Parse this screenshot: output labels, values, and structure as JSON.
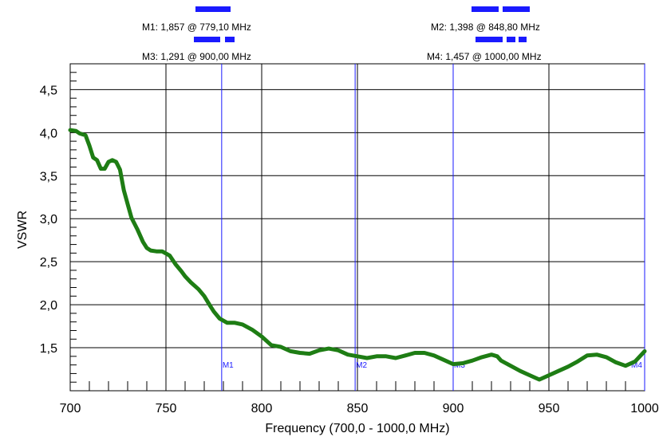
{
  "chart_data": {
    "type": "line",
    "xlabel": "Frequency (700,0 - 1000,0 MHz)",
    "ylabel": "VSWR",
    "xlim": [
      700,
      1000
    ],
    "ylim": [
      1.0,
      4.8
    ],
    "x_ticks": [
      700,
      750,
      800,
      850,
      900,
      950,
      1000
    ],
    "x_tick_labels": [
      "700",
      "750",
      "800",
      "850",
      "900",
      "950",
      "1000"
    ],
    "y_ticks": [
      1.5,
      2.0,
      2.5,
      3.0,
      3.5,
      4.0,
      4.5
    ],
    "y_tick_labels": [
      "1,5",
      "2,0",
      "2,5",
      "3,0",
      "3,5",
      "4,0",
      "4,5"
    ],
    "grid": true,
    "line_color": "#1e7d14",
    "marker_color": "#1a1aff",
    "series": [
      {
        "x": [
          700,
          703,
          705,
          708,
          710,
          712,
          714,
          716,
          718,
          720,
          722,
          724,
          726,
          728,
          730,
          732,
          735,
          738,
          740,
          742,
          745,
          748,
          752,
          755,
          758,
          760,
          763,
          767,
          770,
          773,
          775,
          778,
          782,
          786,
          790,
          795,
          800,
          805,
          810,
          815,
          820,
          825,
          830,
          835,
          840,
          845,
          850,
          855,
          860,
          865,
          870,
          875,
          880,
          885,
          890,
          895,
          900,
          905,
          910,
          915,
          920,
          923,
          925,
          930,
          935,
          940,
          945,
          950,
          955,
          960,
          965,
          970,
          975,
          980,
          985,
          990,
          995,
          1000
        ],
        "y": [
          4.03,
          4.02,
          3.99,
          3.97,
          3.85,
          3.71,
          3.68,
          3.58,
          3.58,
          3.66,
          3.68,
          3.66,
          3.57,
          3.33,
          3.17,
          3.01,
          2.88,
          2.73,
          2.66,
          2.63,
          2.62,
          2.62,
          2.57,
          2.47,
          2.39,
          2.33,
          2.26,
          2.18,
          2.1,
          1.99,
          1.92,
          1.84,
          1.79,
          1.79,
          1.77,
          1.71,
          1.63,
          1.53,
          1.51,
          1.46,
          1.44,
          1.43,
          1.47,
          1.49,
          1.47,
          1.42,
          1.4,
          1.38,
          1.4,
          1.4,
          1.38,
          1.41,
          1.44,
          1.44,
          1.41,
          1.36,
          1.31,
          1.32,
          1.35,
          1.39,
          1.42,
          1.4,
          1.35,
          1.29,
          1.23,
          1.18,
          1.13,
          1.18,
          1.23,
          1.28,
          1.34,
          1.41,
          1.42,
          1.39,
          1.33,
          1.29,
          1.34,
          1.46
        ]
      }
    ],
    "markers": [
      {
        "id": "M1",
        "x": 779.1,
        "label": "M1: 1,857  @ 779,10 MHz"
      },
      {
        "id": "M2",
        "x": 848.8,
        "label": "M2: 1,398  @ 848,80 MHz"
      },
      {
        "id": "M3",
        "x": 900.0,
        "label": "M3: 1,291  @ 900,00 MHz"
      },
      {
        "id": "M4",
        "x": 1000.0,
        "label": "M4: 1,457  @ 1000,00 MHz"
      }
    ]
  }
}
